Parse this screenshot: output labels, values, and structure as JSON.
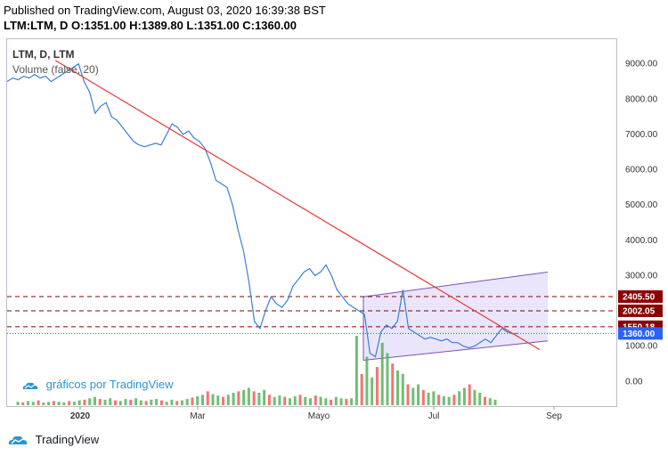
{
  "header": {
    "published": "Published on TradingView.com, August 03, 2020 16:39:38 BST",
    "ohlc": "LTM:LTM, D  O:1351.00 H:1389.80 L:1351.00 C:1360.00"
  },
  "legend": {
    "symbol": "LTM, D, LTM",
    "volume": "Volume (false, 20)"
  },
  "watermark": {
    "text": "gráficos por TradingView"
  },
  "footer": {
    "brand": "TradingView"
  },
  "colors": {
    "price_line": "#3b7dd8",
    "trendline": "#e53935",
    "channel": "#7b4fbf",
    "dashed": "#8b0000",
    "current": "#2962ff",
    "vol_up": "#4caf50",
    "vol_down": "#ef5350"
  },
  "chart_data": {
    "type": "line",
    "x_ticks": [
      "2020",
      "Mar",
      "Mayo",
      "Jul",
      "Sep"
    ],
    "y_ticks": [
      "9000.00",
      "8000.00",
      "7000.00",
      "6000.00",
      "5000.00",
      "4000.00",
      "3000.00",
      "2000.00",
      "1000.00",
      "0.00"
    ],
    "ylim": [
      -700,
      9700
    ],
    "price_tags": [
      {
        "label": "2405.50",
        "value": 2405.5,
        "color": "#8b0000"
      },
      {
        "label": "2002.05",
        "value": 2002.05,
        "color": "#8b0000"
      },
      {
        "label": "1550.18",
        "value": 1550.18,
        "color": "#8b0000"
      },
      {
        "label": "1360.00",
        "value": 1360,
        "color": "#2962ff"
      }
    ],
    "series": [
      {
        "values": [
          8500,
          8600,
          8550,
          8650,
          8600,
          8700,
          8600,
          8650,
          8500,
          8600,
          8700,
          8800,
          8900,
          9000,
          8500,
          8200,
          7600,
          7800,
          7900,
          7500,
          7400,
          7200,
          7000,
          6800,
          6700,
          6650,
          6700,
          6750,
          6700,
          7000,
          7300,
          7200,
          7000,
          7100,
          6900,
          6800,
          6600,
          6200,
          5700,
          5600,
          5500,
          5000,
          4300,
          3700,
          2800,
          1700,
          1500,
          2000,
          2400,
          2200,
          2100,
          2300,
          2700,
          2900,
          3100,
          3200,
          3000,
          3100,
          3300,
          3000,
          2600,
          2400,
          2200,
          2100,
          2000,
          1900,
          800,
          700,
          1400,
          1600,
          1500,
          1700,
          2600,
          1500,
          1400,
          1300,
          1200,
          1250,
          1200,
          1150,
          1200,
          1100,
          1100,
          1000,
          950,
          1000,
          1100,
          1200,
          1100,
          1300,
          1500,
          1400,
          1350,
          1360
        ]
      }
    ],
    "volume": [
      0.05,
      0.04,
      0.06,
      0.05,
      0.07,
      0.04,
      0.05,
      0.06,
      0.05,
      0.04,
      0.06,
      0.05,
      0.07,
      0.08,
      0.1,
      0.12,
      0.09,
      0.08,
      0.1,
      0.07,
      0.06,
      0.09,
      0.08,
      0.1,
      0.07,
      0.06,
      0.08,
      0.09,
      0.07,
      0.05,
      0.08,
      0.06,
      0.07,
      0.09,
      0.11,
      0.13,
      0.15,
      0.2,
      0.16,
      0.14,
      0.12,
      0.15,
      0.18,
      0.2,
      0.22,
      0.25,
      0.2,
      0.18,
      0.22,
      0.15,
      0.12,
      0.14,
      0.12,
      0.1,
      0.13,
      0.15,
      0.12,
      0.1,
      0.14,
      0.12,
      0.1,
      0.08,
      0.12,
      0.1,
      0.09,
      0.1,
      1.0,
      0.45,
      0.7,
      0.4,
      0.55,
      0.9,
      0.75,
      0.6,
      0.5,
      0.45,
      0.3,
      0.25,
      0.3,
      0.22,
      0.18,
      0.2,
      0.15,
      0.13,
      0.12,
      0.15,
      0.2,
      0.25,
      0.3,
      0.22,
      0.18,
      0.12,
      0.1,
      0.08
    ]
  }
}
